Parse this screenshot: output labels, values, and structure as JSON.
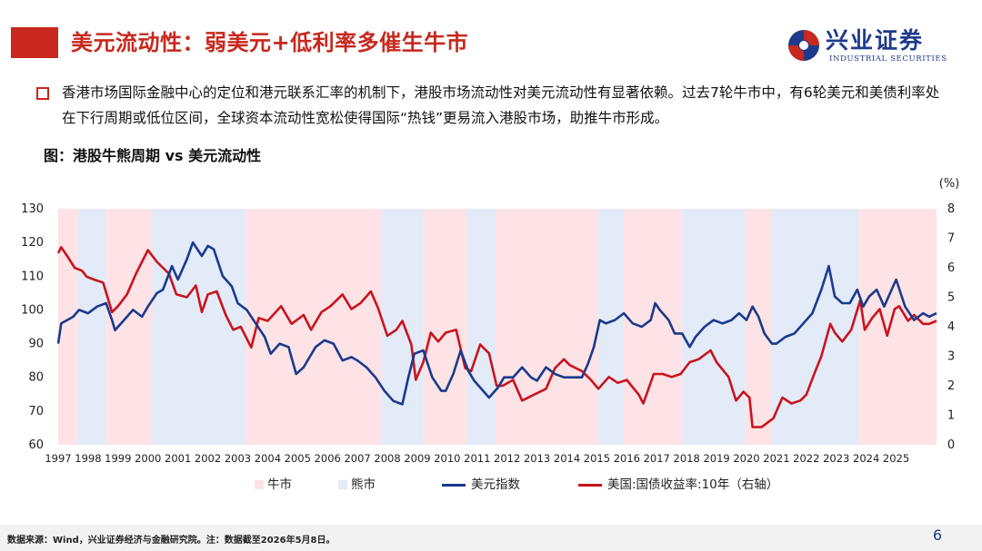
{
  "header": {
    "title": "美元流动性：弱美元+低利率多催生牛市",
    "logo_name": "兴业证券",
    "logo_en": "INDUSTRIAL SECURITIES"
  },
  "bullet": "香港市场国际金融中心的定位和港元联系汇率的机制下，港股市场流动性对美元流动性有显著依赖。过去7轮牛市中，有6轮美元和美债利率处在下行周期或低位区间，全球资本流动性宽松使得国际“热钱”更易流入港股市场，助推牛市形成。",
  "figure_title": "图：港股牛熊周期 vs 美元流动性",
  "footer": {
    "source": "数据来源：Wind，兴业证券经济与金融研究院。注：数据截至2026年5月8日。",
    "page": "6"
  },
  "colors": {
    "brand_red": "#c8281e",
    "brand_blue": "#1e3a8a",
    "bull": "#fde3e5",
    "bear": "#e3eaf8",
    "dxy": "#1a3a8c",
    "yield": "#c8141e"
  },
  "chart_data": {
    "type": "line",
    "x_ticks": [
      "1997",
      "1998",
      "1999",
      "2000",
      "2001",
      "2002",
      "2003",
      "2004",
      "2005",
      "2006",
      "2007",
      "2008",
      "2009",
      "2010",
      "2011",
      "2012",
      "2013",
      "2014",
      "2015",
      "2016",
      "2017",
      "2018",
      "2019",
      "2020",
      "2021",
      "2022",
      "2023",
      "2024",
      "2025"
    ],
    "x_range": [
      1997.0,
      2026.35
    ],
    "y_left": {
      "range": [
        60,
        130
      ],
      "ticks": [
        "60",
        "70",
        "80",
        "90",
        "100",
        "110",
        "120",
        "130"
      ]
    },
    "y_right": {
      "range": [
        0,
        8
      ],
      "ticks": [
        "0",
        "1",
        "2",
        "3",
        "4",
        "5",
        "6",
        "7",
        "8"
      ],
      "unit": "(%)"
    },
    "legend": {
      "bull": "牛市",
      "bear": "熊市",
      "dxy": "美元指数",
      "yield": "美国:国债收益率:10年（右轴）"
    },
    "regimes": [
      {
        "type": "bull",
        "from": 1997.0,
        "to": 1997.65
      },
      {
        "type": "bear",
        "from": 1997.65,
        "to": 1998.6
      },
      {
        "type": "bull",
        "from": 1998.6,
        "to": 2000.15
      },
      {
        "type": "bear",
        "from": 2000.15,
        "to": 2003.25
      },
      {
        "type": "bull",
        "from": 2003.25,
        "to": 2007.8
      },
      {
        "type": "bear",
        "from": 2007.8,
        "to": 2009.2
      },
      {
        "type": "bull",
        "from": 2009.2,
        "to": 2010.65
      },
      {
        "type": "bear",
        "from": 2010.65,
        "to": 2011.6
      },
      {
        "type": "bull",
        "from": 2011.6,
        "to": 2015.05
      },
      {
        "type": "bear",
        "from": 2015.05,
        "to": 2015.9
      },
      {
        "type": "bull",
        "from": 2015.9,
        "to": 2017.85
      },
      {
        "type": "bear",
        "from": 2017.85,
        "to": 2019.95
      },
      {
        "type": "bull",
        "from": 2019.95,
        "to": 2020.85
      },
      {
        "type": "bear",
        "from": 2020.85,
        "to": 2023.75
      },
      {
        "type": "bull",
        "from": 2023.75,
        "to": 2026.35
      }
    ],
    "series": [
      {
        "name": "美元指数",
        "axis": "left",
        "points": [
          [
            1997.0,
            90
          ],
          [
            1997.1,
            96
          ],
          [
            1997.3,
            97
          ],
          [
            1997.5,
            98
          ],
          [
            1997.7,
            100
          ],
          [
            1998.0,
            99
          ],
          [
            1998.3,
            101
          ],
          [
            1998.6,
            102
          ],
          [
            1998.8,
            97
          ],
          [
            1998.9,
            94
          ],
          [
            1999.2,
            97
          ],
          [
            1999.5,
            100
          ],
          [
            1999.8,
            98
          ],
          [
            2000.0,
            101
          ],
          [
            2000.3,
            105
          ],
          [
            2000.5,
            106
          ],
          [
            2000.8,
            113
          ],
          [
            2001.0,
            109
          ],
          [
            2001.3,
            115
          ],
          [
            2001.5,
            120
          ],
          [
            2001.8,
            116
          ],
          [
            2002.0,
            119
          ],
          [
            2002.2,
            118
          ],
          [
            2002.5,
            110
          ],
          [
            2002.8,
            107
          ],
          [
            2003.0,
            102
          ],
          [
            2003.3,
            100
          ],
          [
            2003.6,
            96
          ],
          [
            2003.9,
            92
          ],
          [
            2004.1,
            87
          ],
          [
            2004.4,
            90
          ],
          [
            2004.7,
            89
          ],
          [
            2004.95,
            81
          ],
          [
            2005.2,
            83
          ],
          [
            2005.6,
            89
          ],
          [
            2005.9,
            91
          ],
          [
            2006.2,
            90
          ],
          [
            2006.5,
            85
          ],
          [
            2006.8,
            86
          ],
          [
            2007.0,
            85
          ],
          [
            2007.3,
            83
          ],
          [
            2007.6,
            80
          ],
          [
            2007.9,
            76
          ],
          [
            2008.2,
            73
          ],
          [
            2008.5,
            72
          ],
          [
            2008.7,
            80
          ],
          [
            2008.9,
            87
          ],
          [
            2009.2,
            88
          ],
          [
            2009.5,
            80
          ],
          [
            2009.8,
            76
          ],
          [
            2009.95,
            76
          ],
          [
            2010.2,
            81
          ],
          [
            2010.45,
            88
          ],
          [
            2010.7,
            82
          ],
          [
            2010.9,
            79
          ],
          [
            2011.2,
            76
          ],
          [
            2011.4,
            74
          ],
          [
            2011.7,
            77
          ],
          [
            2011.9,
            80
          ],
          [
            2012.2,
            80
          ],
          [
            2012.5,
            83
          ],
          [
            2012.8,
            80
          ],
          [
            2013.0,
            79
          ],
          [
            2013.3,
            83
          ],
          [
            2013.6,
            81
          ],
          [
            2013.9,
            80
          ],
          [
            2014.2,
            80
          ],
          [
            2014.5,
            80
          ],
          [
            2014.7,
            84
          ],
          [
            2014.9,
            89
          ],
          [
            2015.1,
            97
          ],
          [
            2015.3,
            96
          ],
          [
            2015.6,
            97
          ],
          [
            2015.9,
            99
          ],
          [
            2016.2,
            96
          ],
          [
            2016.5,
            95
          ],
          [
            2016.8,
            97
          ],
          [
            2016.95,
            102
          ],
          [
            2017.1,
            100
          ],
          [
            2017.4,
            97
          ],
          [
            2017.6,
            93
          ],
          [
            2017.85,
            93
          ],
          [
            2018.1,
            89
          ],
          [
            2018.3,
            92
          ],
          [
            2018.6,
            95
          ],
          [
            2018.9,
            97
          ],
          [
            2019.2,
            96
          ],
          [
            2019.5,
            97
          ],
          [
            2019.75,
            99
          ],
          [
            2020.0,
            97
          ],
          [
            2020.2,
            101
          ],
          [
            2020.4,
            98
          ],
          [
            2020.6,
            93
          ],
          [
            2020.85,
            90
          ],
          [
            2021.0,
            90
          ],
          [
            2021.3,
            92
          ],
          [
            2021.6,
            93
          ],
          [
            2021.9,
            96
          ],
          [
            2022.2,
            99
          ],
          [
            2022.5,
            106
          ],
          [
            2022.75,
            113
          ],
          [
            2022.95,
            104
          ],
          [
            2023.2,
            102
          ],
          [
            2023.45,
            102
          ],
          [
            2023.7,
            106
          ],
          [
            2023.9,
            101
          ],
          [
            2024.1,
            104
          ],
          [
            2024.35,
            106
          ],
          [
            2024.6,
            101
          ],
          [
            2024.85,
            106
          ],
          [
            2025.0,
            109
          ],
          [
            2025.3,
            101
          ],
          [
            2025.6,
            97
          ],
          [
            2025.9,
            99
          ],
          [
            2026.1,
            98
          ],
          [
            2026.35,
            99
          ]
        ]
      },
      {
        "name": "美国:国债收益率:10年（右轴）",
        "axis": "right",
        "points": [
          [
            1997.0,
            6.5
          ],
          [
            1997.1,
            6.7
          ],
          [
            1997.3,
            6.4
          ],
          [
            1997.55,
            6.0
          ],
          [
            1997.8,
            5.9
          ],
          [
            1997.95,
            5.7
          ],
          [
            1998.2,
            5.6
          ],
          [
            1998.5,
            5.5
          ],
          [
            1998.8,
            4.5
          ],
          [
            1999.0,
            4.7
          ],
          [
            1999.3,
            5.1
          ],
          [
            1999.6,
            5.8
          ],
          [
            2000.0,
            6.6
          ],
          [
            2000.3,
            6.2
          ],
          [
            2000.7,
            5.8
          ],
          [
            2000.95,
            5.1
          ],
          [
            2001.3,
            5.0
          ],
          [
            2001.6,
            5.4
          ],
          [
            2001.8,
            4.5
          ],
          [
            2002.0,
            5.1
          ],
          [
            2002.3,
            5.2
          ],
          [
            2002.6,
            4.4
          ],
          [
            2002.85,
            3.9
          ],
          [
            2003.1,
            4.0
          ],
          [
            2003.45,
            3.3
          ],
          [
            2003.7,
            4.3
          ],
          [
            2004.0,
            4.2
          ],
          [
            2004.45,
            4.7
          ],
          [
            2004.8,
            4.1
          ],
          [
            2005.2,
            4.4
          ],
          [
            2005.45,
            3.9
          ],
          [
            2005.8,
            4.5
          ],
          [
            2006.1,
            4.7
          ],
          [
            2006.5,
            5.1
          ],
          [
            2006.8,
            4.6
          ],
          [
            2007.1,
            4.8
          ],
          [
            2007.45,
            5.2
          ],
          [
            2007.7,
            4.6
          ],
          [
            2008.0,
            3.7
          ],
          [
            2008.3,
            3.9
          ],
          [
            2008.5,
            4.2
          ],
          [
            2008.8,
            3.4
          ],
          [
            2008.95,
            2.2
          ],
          [
            2009.2,
            2.8
          ],
          [
            2009.45,
            3.8
          ],
          [
            2009.7,
            3.5
          ],
          [
            2009.95,
            3.8
          ],
          [
            2010.3,
            3.9
          ],
          [
            2010.6,
            2.6
          ],
          [
            2010.8,
            2.5
          ],
          [
            2011.1,
            3.4
          ],
          [
            2011.4,
            3.1
          ],
          [
            2011.65,
            2.0
          ],
          [
            2011.85,
            2.0
          ],
          [
            2012.2,
            2.2
          ],
          [
            2012.5,
            1.5
          ],
          [
            2012.9,
            1.7
          ],
          [
            2013.3,
            1.9
          ],
          [
            2013.6,
            2.6
          ],
          [
            2013.9,
            2.9
          ],
          [
            2014.1,
            2.7
          ],
          [
            2014.5,
            2.5
          ],
          [
            2014.8,
            2.2
          ],
          [
            2015.05,
            1.9
          ],
          [
            2015.4,
            2.3
          ],
          [
            2015.7,
            2.1
          ],
          [
            2016.0,
            2.2
          ],
          [
            2016.4,
            1.7
          ],
          [
            2016.55,
            1.4
          ],
          [
            2016.9,
            2.4
          ],
          [
            2017.2,
            2.4
          ],
          [
            2017.5,
            2.3
          ],
          [
            2017.8,
            2.4
          ],
          [
            2018.1,
            2.8
          ],
          [
            2018.4,
            2.9
          ],
          [
            2018.8,
            3.2
          ],
          [
            2019.0,
            2.8
          ],
          [
            2019.4,
            2.3
          ],
          [
            2019.65,
            1.5
          ],
          [
            2019.9,
            1.8
          ],
          [
            2020.1,
            1.6
          ],
          [
            2020.2,
            0.6
          ],
          [
            2020.5,
            0.6
          ],
          [
            2020.9,
            0.9
          ],
          [
            2021.2,
            1.6
          ],
          [
            2021.5,
            1.4
          ],
          [
            2021.8,
            1.5
          ],
          [
            2022.0,
            1.7
          ],
          [
            2022.3,
            2.5
          ],
          [
            2022.5,
            3.0
          ],
          [
            2022.8,
            4.1
          ],
          [
            2022.95,
            3.8
          ],
          [
            2023.2,
            3.5
          ],
          [
            2023.5,
            3.9
          ],
          [
            2023.8,
            4.9
          ],
          [
            2023.95,
            3.9
          ],
          [
            2024.2,
            4.3
          ],
          [
            2024.45,
            4.6
          ],
          [
            2024.7,
            3.7
          ],
          [
            2024.95,
            4.6
          ],
          [
            2025.1,
            4.7
          ],
          [
            2025.4,
            4.2
          ],
          [
            2025.6,
            4.4
          ],
          [
            2025.9,
            4.1
          ],
          [
            2026.1,
            4.1
          ],
          [
            2026.35,
            4.2
          ]
        ]
      }
    ]
  }
}
